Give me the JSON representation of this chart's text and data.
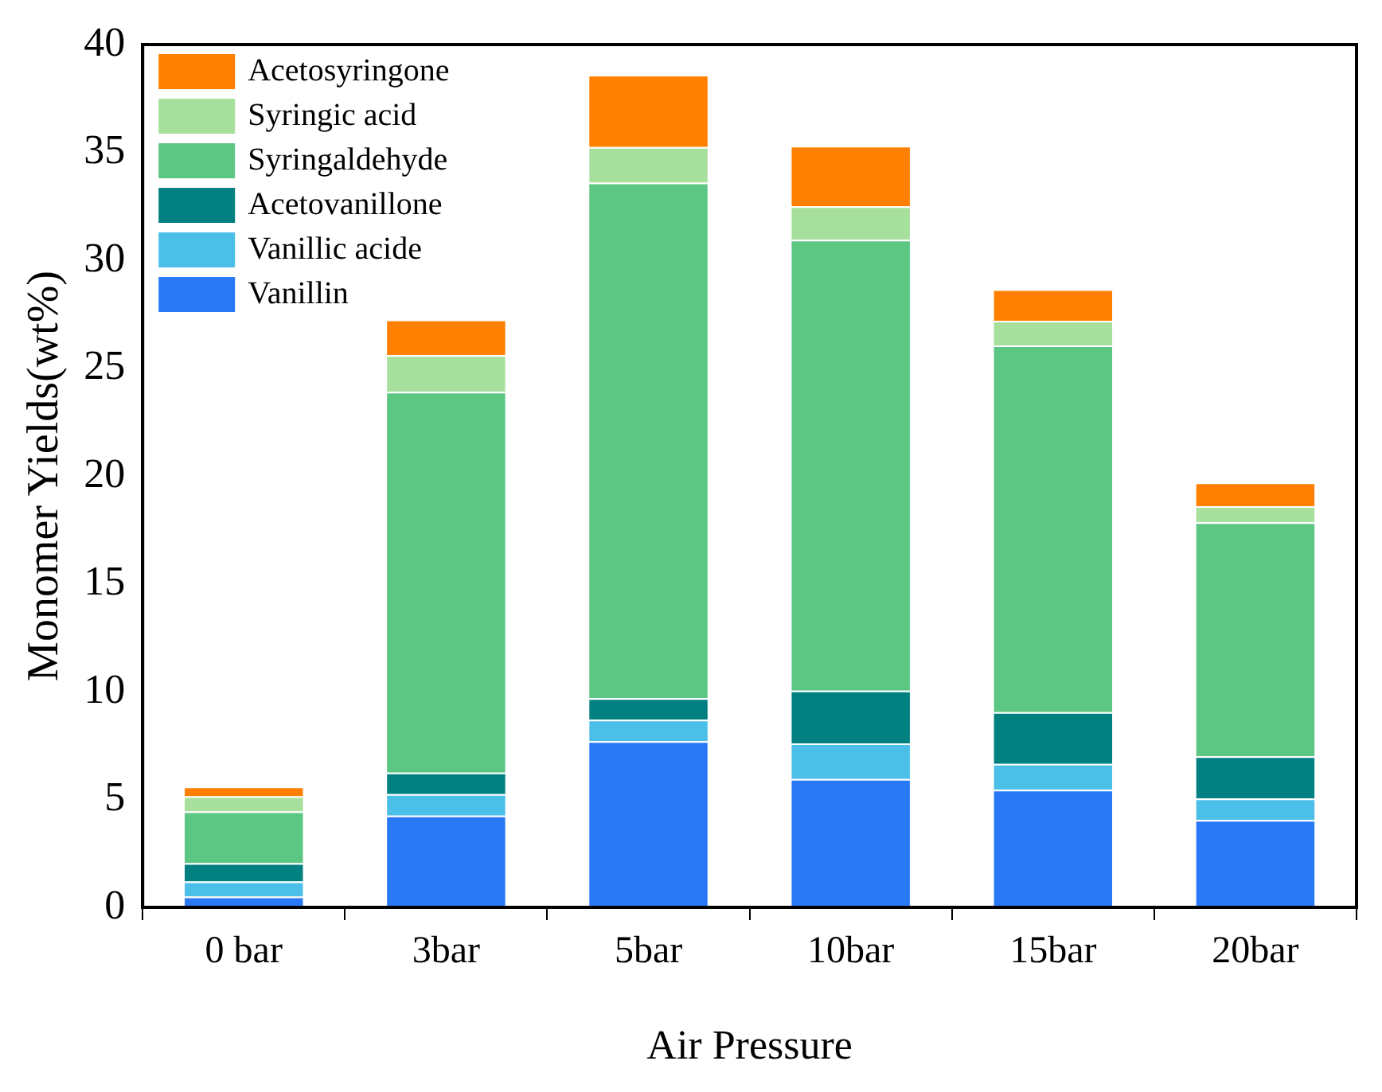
{
  "chart_data": {
    "type": "bar",
    "stacked": true,
    "xlabel": "Air Pressure",
    "ylabel": "Monomer Yields(wt%)",
    "categories": [
      "0 bar",
      "3bar",
      "5bar",
      "10bar",
      "15bar",
      "20bar"
    ],
    "series": [
      {
        "name": "Vanillin",
        "color": "#2979f7",
        "values": [
          0.5,
          4.25,
          7.7,
          5.95,
          5.45,
          4.05
        ]
      },
      {
        "name": "Vanillic acide",
        "color": "#4bbfe8",
        "values": [
          0.7,
          1.0,
          1.0,
          1.65,
          1.2,
          1.0
        ]
      },
      {
        "name": "Acetovanillone",
        "color": "#008080",
        "values": [
          0.85,
          1.0,
          1.0,
          2.45,
          2.4,
          1.95
        ]
      },
      {
        "name": "Syringaldehyde",
        "color": "#5cc683",
        "values": [
          2.4,
          17.65,
          23.9,
          20.9,
          17.0,
          10.85
        ]
      },
      {
        "name": "Syringic acid",
        "color": "#a7e09c",
        "values": [
          0.7,
          1.7,
          1.65,
          1.55,
          1.15,
          0.75
        ]
      },
      {
        "name": "Acetosyringone",
        "color": "#ff8000",
        "values": [
          0.45,
          1.65,
          3.35,
          2.8,
          1.45,
          1.1
        ]
      }
    ],
    "ylim": [
      0,
      40
    ],
    "yticks": [
      0,
      5,
      10,
      15,
      20,
      25,
      30,
      35,
      40
    ],
    "grid": false,
    "legend": "top left"
  }
}
